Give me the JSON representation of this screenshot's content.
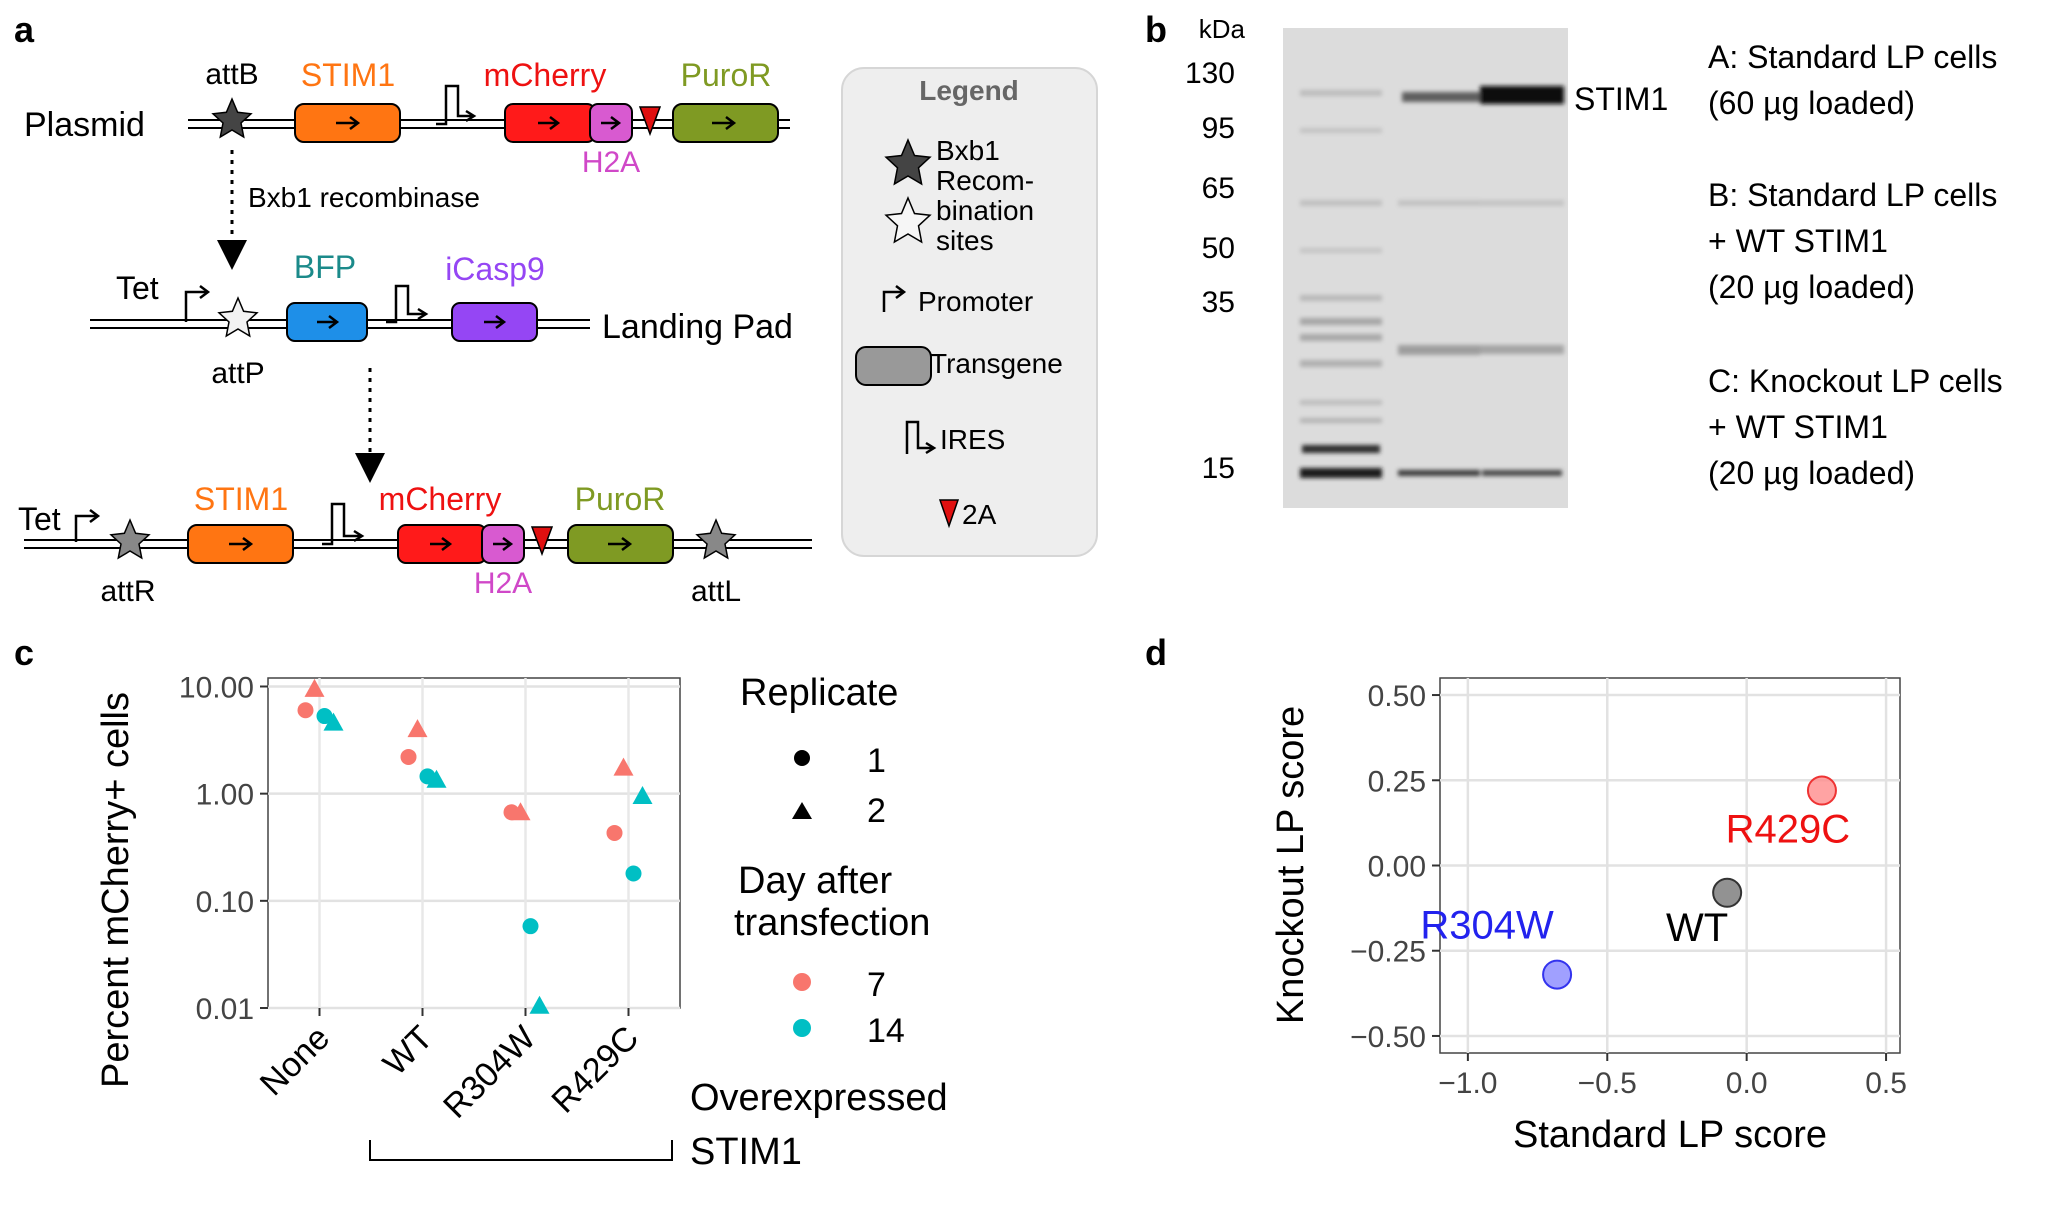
{
  "panel_labels": {
    "a": "a",
    "b": "b",
    "c": "c",
    "d": "d"
  },
  "colors": {
    "stim1": "#ff7512",
    "mcherry": "#ff1a1a",
    "h2a": "#d85ad0",
    "puror": "#7f9a23",
    "bfp": "#1e8fe8",
    "bfp_text": "#1b8a8a",
    "icasp9": "#9546f4",
    "day7": "#f8766d",
    "day14": "#00bfc4",
    "r304w": "#3333ee",
    "r429c": "#ee2222"
  },
  "panel_a": {
    "plasmid": {
      "label": "Plasmid",
      "site": "attB",
      "genes": {
        "stim1": "STIM1",
        "mcherry": "mCherry",
        "h2a": "H2A",
        "puror": "PuroR"
      }
    },
    "recombinase": "Bxb1 recombinase",
    "landing_pad": {
      "label": "Landing Pad",
      "promoter": "Tet",
      "site": "attP",
      "genes": {
        "bfp": "BFP",
        "icasp9": "iCasp9"
      }
    },
    "recombined": {
      "promoter": "Tet",
      "site_left": "attR",
      "site_right": "attL",
      "genes": {
        "stim1": "STIM1",
        "mcherry": "mCherry",
        "h2a": "H2A",
        "puror": "PuroR"
      }
    },
    "legend": {
      "title": "Legend",
      "sites_lines": [
        "Bxb1",
        "Recom-",
        "bination",
        "sites"
      ],
      "promoter": "Promoter",
      "transgene": "Transgene",
      "ires": "IRES",
      "t2a": "2A"
    }
  },
  "panel_b": {
    "unit": "kDa",
    "markers": [
      "130",
      "95",
      "65",
      "50",
      "35",
      "15"
    ],
    "lanes": [
      "A",
      "B",
      "C"
    ],
    "band_label": "STIM1",
    "lane_descriptions": [
      [
        "A: Standard LP cells",
        "(60 µg loaded)"
      ],
      [
        "B: Standard LP cells",
        "+ WT STIM1",
        "(20 µg loaded)"
      ],
      [
        "C: Knockout LP cells",
        "+ WT STIM1",
        "(20 µg loaded)"
      ]
    ]
  },
  "chart_data": [
    {
      "type": "scatter",
      "panel": "c",
      "ylabel": "Percent mCherry+ cells",
      "xlabel": "Overexpressed STIM1",
      "y_scale": "log10",
      "ylim": [
        0.01,
        12
      ],
      "y_ticks": [
        "10.00",
        "1.00",
        "0.10",
        "0.01"
      ],
      "categories": [
        "None",
        "WT",
        "R304W",
        "R429C"
      ],
      "grid": true,
      "legend_placement": "right",
      "legend": {
        "shape_title": "Replicate",
        "shape_entries": [
          "1",
          "2"
        ],
        "color_title_lines": [
          "Day after",
          "transfection"
        ],
        "color_entries": [
          "7",
          "14"
        ]
      },
      "series": [
        {
          "name": "7",
          "replicate": "1",
          "values": [
            6.0,
            2.2,
            0.67,
            0.43
          ]
        },
        {
          "name": "7",
          "replicate": "2",
          "values": [
            9.5,
            4.0,
            0.67,
            1.75
          ]
        },
        {
          "name": "14",
          "replicate": "1",
          "values": [
            5.3,
            1.45,
            0.058,
            0.18
          ]
        },
        {
          "name": "14",
          "replicate": "2",
          "values": [
            4.6,
            1.35,
            0.0105,
            0.95
          ]
        }
      ]
    },
    {
      "type": "scatter",
      "panel": "d",
      "xlabel": "Standard LP score",
      "ylabel": "Knockout LP score",
      "xlim": [
        -1.1,
        0.55
      ],
      "ylim": [
        -0.55,
        0.55
      ],
      "x_ticks": [
        "−1.0",
        "−0.5",
        "0.0",
        "0.5"
      ],
      "y_ticks": [
        "0.50",
        "0.25",
        "0.00",
        "−0.25",
        "−0.50"
      ],
      "grid": true,
      "points": [
        {
          "label": "R304W",
          "x": -0.68,
          "y": -0.32
        },
        {
          "label": "WT",
          "x": -0.07,
          "y": -0.08
        },
        {
          "label": "R429C",
          "x": 0.27,
          "y": 0.22
        }
      ]
    }
  ]
}
